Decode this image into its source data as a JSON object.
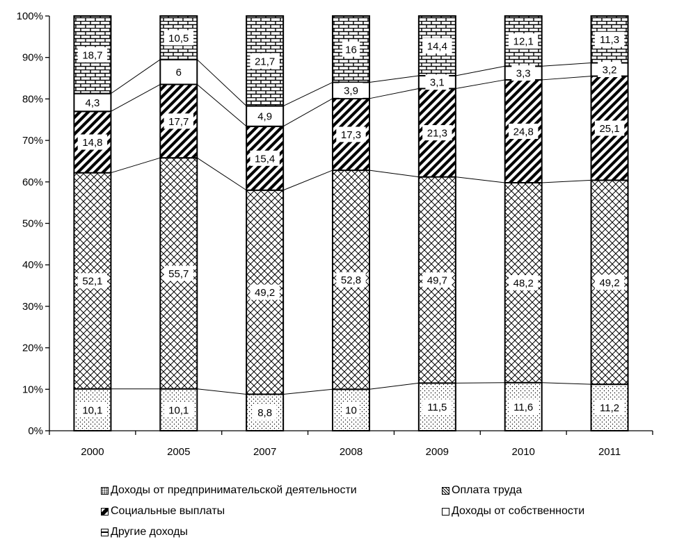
{
  "chart_data": {
    "type": "bar",
    "stacked": true,
    "percent": true,
    "categories": [
      "2000",
      "2005",
      "2007",
      "2008",
      "2009",
      "2010",
      "2011"
    ],
    "series": [
      {
        "name": "Доходы от предпринимательской деятельности",
        "values": [
          10.1,
          10.1,
          8.8,
          10,
          11.5,
          11.6,
          11.2
        ],
        "labels": [
          "10,1",
          "10,1",
          "8,8",
          "10",
          "11,5",
          "11,6",
          "11,2"
        ],
        "pattern": "dots"
      },
      {
        "name": "Оплата труда",
        "values": [
          52.1,
          55.7,
          49.2,
          52.8,
          49.7,
          48.2,
          49.2
        ],
        "labels": [
          "52,1",
          "55,7",
          "49,2",
          "52,8",
          "49,7",
          "48,2",
          "49,2"
        ],
        "pattern": "crosshatch"
      },
      {
        "name": "Социальные выплаты",
        "values": [
          14.8,
          17.7,
          15.4,
          17.3,
          21.3,
          24.8,
          25.1
        ],
        "labels": [
          "14,8",
          "17,7",
          "15,4",
          "17,3",
          "21,3",
          "24,8",
          "25,1"
        ],
        "pattern": "diagonal"
      },
      {
        "name": "Доходы от собственности",
        "values": [
          4.3,
          6,
          4.9,
          3.9,
          3.1,
          3.3,
          3.2
        ],
        "labels": [
          "4,3",
          "6",
          "4,9",
          "3,9",
          "3,1",
          "3,3",
          "3,2"
        ],
        "pattern": "white"
      },
      {
        "name": "Другие доходы",
        "values": [
          18.7,
          10.5,
          21.7,
          16,
          14.4,
          12.1,
          11.3
        ],
        "labels": [
          "18,7",
          "10,5",
          "21,7",
          "16",
          "14,4",
          "12,1",
          "11,3"
        ],
        "pattern": "brick"
      }
    ],
    "yticks": [
      "0%",
      "10%",
      "20%",
      "30%",
      "40%",
      "50%",
      "60%",
      "70%",
      "80%",
      "90%",
      "100%"
    ],
    "ylim": [
      0,
      100
    ],
    "series_lines": true,
    "grid": false,
    "legend_position": "bottom"
  }
}
